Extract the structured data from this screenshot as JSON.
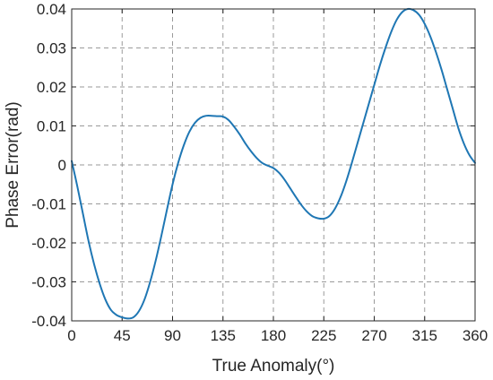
{
  "chart_data": {
    "type": "line",
    "xlabel": "True Anomaly(°)",
    "ylabel": "Phase Error(rad)",
    "xlim": [
      0,
      360
    ],
    "ylim": [
      -0.04,
      0.04
    ],
    "xticks": [
      0,
      45,
      90,
      135,
      180,
      225,
      270,
      315,
      360
    ],
    "yticks": [
      0.04,
      0.03,
      0.02,
      0.01,
      0,
      -0.01,
      -0.02,
      -0.03,
      -0.04
    ],
    "xtick_labels": [
      "0",
      "45",
      "90",
      "135",
      "180",
      "225",
      "270",
      "315",
      "360"
    ],
    "ytick_labels": [
      "0.04",
      "0.03",
      "0.02",
      "0.01",
      "0",
      "-0.01",
      "-0.02",
      "-0.03",
      "-0.04"
    ],
    "grid": true,
    "series": [
      {
        "color": "#1f77b4",
        "x": [
          0,
          5,
          10,
          15,
          20,
          25,
          30,
          35,
          40,
          45,
          50,
          55,
          60,
          65,
          70,
          75,
          80,
          85,
          90,
          95,
          100,
          105,
          110,
          115,
          120,
          125,
          130,
          135,
          140,
          145,
          150,
          155,
          160,
          165,
          170,
          175,
          180,
          185,
          190,
          195,
          200,
          205,
          210,
          215,
          220,
          225,
          230,
          235,
          240,
          245,
          250,
          255,
          260,
          265,
          270,
          275,
          280,
          285,
          290,
          295,
          300,
          305,
          310,
          315,
          320,
          325,
          330,
          335,
          340,
          345,
          350,
          355,
          360
        ],
        "y": [
          0.001,
          -0.0055,
          -0.0125,
          -0.0195,
          -0.0255,
          -0.0305,
          -0.0345,
          -0.0372,
          -0.0385,
          -0.0391,
          -0.0394,
          -0.0391,
          -0.0375,
          -0.0345,
          -0.03,
          -0.0245,
          -0.0182,
          -0.0115,
          -0.005,
          0.0005,
          0.005,
          0.0085,
          0.0108,
          0.0121,
          0.0126,
          0.0126,
          0.0125,
          0.0124,
          0.0115,
          0.0098,
          0.0078,
          0.0055,
          0.0035,
          0.0018,
          0.0005,
          -0.0002,
          -0.0008,
          -0.002,
          -0.0038,
          -0.006,
          -0.0082,
          -0.0103,
          -0.012,
          -0.0132,
          -0.0137,
          -0.0138,
          -0.0131,
          -0.0112,
          -0.0082,
          -0.0042,
          0.0005,
          0.0055,
          0.0105,
          0.0155,
          0.0205,
          0.0255,
          0.03,
          0.034,
          0.0372,
          0.0392,
          0.04,
          0.0397,
          0.0385,
          0.0362,
          0.033,
          0.029,
          0.0245,
          0.0195,
          0.0145,
          0.0095,
          0.0055,
          0.0025,
          0.0005
        ]
      }
    ]
  }
}
